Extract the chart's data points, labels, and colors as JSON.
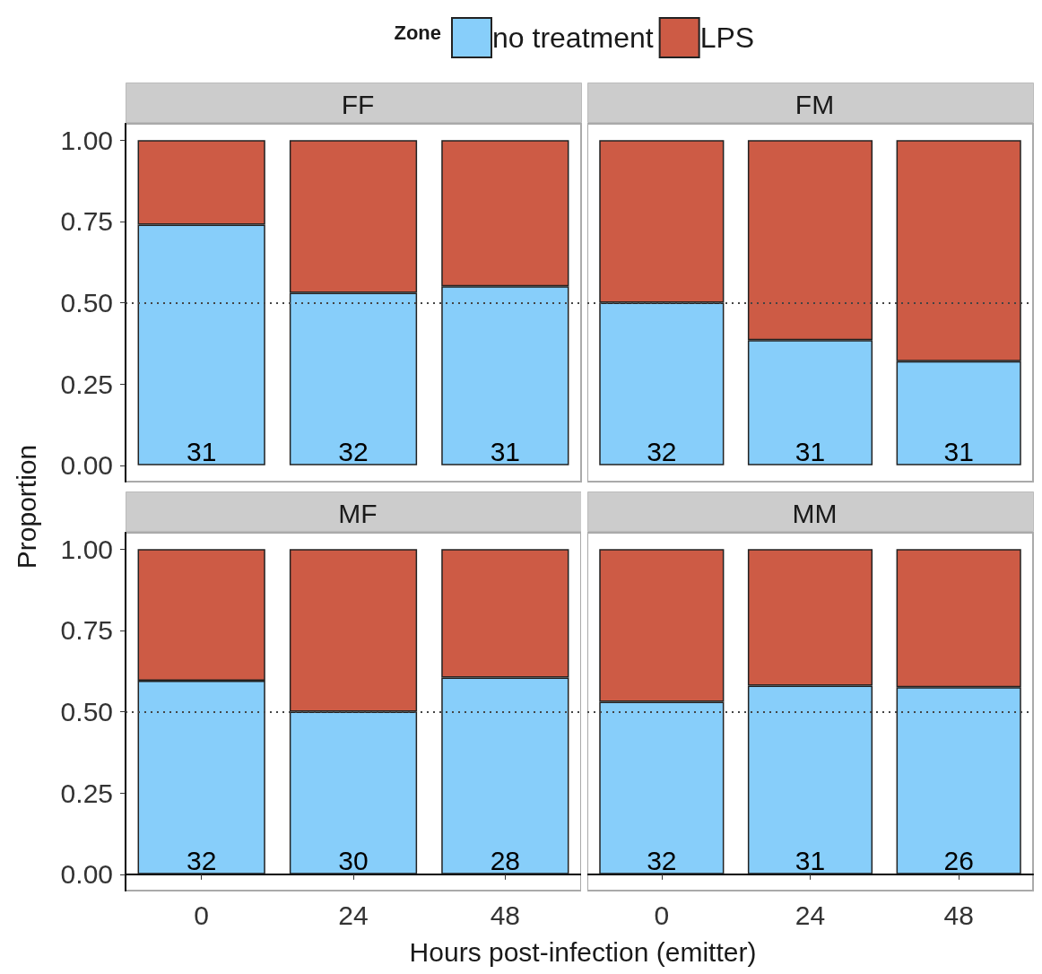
{
  "chart_data": [
    {
      "type": "bar",
      "title": "FF",
      "stacked": true,
      "categories": [
        "0",
        "24",
        "48"
      ],
      "legend": "top",
      "legend_title": "Zone",
      "ylabel": "Proportion",
      "tick_labels": "y",
      "ylim": [
        -0.05,
        1.05
      ],
      "yticks": [
        {
          "value": 0,
          "label": "0.00"
        },
        {
          "value": 0.25,
          "label": "0.25"
        },
        {
          "value": 0.5,
          "label": "0.50"
        },
        {
          "value": 0.75,
          "label": "0.75"
        },
        {
          "value": 1,
          "label": "1.00"
        }
      ],
      "ref_lines": [
        {
          "axis": "y",
          "value": 0.5,
          "line_style": "dotted"
        }
      ],
      "annotations": [
        "31",
        "32",
        "31"
      ],
      "series": [
        {
          "name": "no treatment",
          "color": "#87cefa",
          "values": [
            0.74,
            0.53,
            0.55
          ]
        },
        {
          "name": "LPS",
          "color": "#cd5b45",
          "values": [
            0.26,
            0.47,
            0.45
          ]
        }
      ]
    },
    {
      "type": "bar",
      "title": "FM",
      "stacked": true,
      "categories": [
        "0",
        "24",
        "48"
      ],
      "tick_labels": false,
      "ylim": [
        -0.05,
        1.05
      ],
      "ref_lines": [
        {
          "axis": "y",
          "value": 0.5,
          "line_style": "dotted"
        }
      ],
      "annotations": [
        "32",
        "31",
        "31"
      ],
      "series": [
        {
          "color": "#87cefa",
          "values": [
            0.5,
            0.385,
            0.32
          ]
        },
        {
          "color": "#cd5b45",
          "values": [
            0.5,
            0.615,
            0.68
          ]
        }
      ]
    },
    {
      "type": "bar",
      "title": "MF",
      "stacked": true,
      "categories": [
        "0",
        "24",
        "48"
      ],
      "xlabel": "Hours post-infection (emitter)",
      "ylim": [
        -0.05,
        1.05
      ],
      "yticks": [
        {
          "value": 0,
          "label": "0.00"
        },
        {
          "value": 0.25,
          "label": "0.25"
        },
        {
          "value": 0.5,
          "label": "0.50"
        },
        {
          "value": 0.75,
          "label": "0.75"
        },
        {
          "value": 1,
          "label": "1.00"
        }
      ],
      "ref_lines": [
        {
          "axis": "y",
          "value": 0.5,
          "line_style": "dotted"
        }
      ],
      "annotations": [
        "32",
        "30",
        "28"
      ],
      "series": [
        {
          "color": "#87cefa",
          "values": [
            0.595,
            0.5,
            0.605
          ]
        },
        {
          "color": "#cd5b45",
          "values": [
            0.405,
            0.5,
            0.395
          ]
        }
      ]
    },
    {
      "type": "bar",
      "title": "MM",
      "stacked": true,
      "categories": [
        "0",
        "24",
        "48"
      ],
      "tick_labels": "x",
      "ylim": [
        -0.05,
        1.05
      ],
      "ref_lines": [
        {
          "axis": "y",
          "value": 0.5,
          "line_style": "dotted"
        }
      ],
      "annotations": [
        "32",
        "31",
        "26"
      ],
      "series": [
        {
          "color": "#87cefa",
          "values": [
            0.53,
            0.58,
            0.575
          ]
        },
        {
          "color": "#cd5b45",
          "values": [
            0.47,
            0.42,
            0.425
          ]
        }
      ]
    }
  ]
}
